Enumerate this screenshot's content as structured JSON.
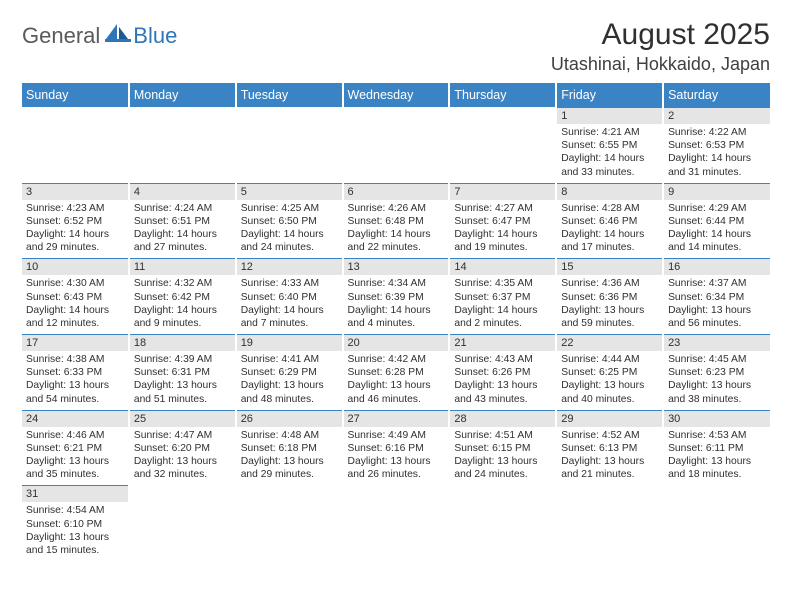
{
  "brand": {
    "text1": "General",
    "text2": "Blue",
    "accent_color": "#2f76b8",
    "muted_color": "#5a5a5a"
  },
  "title": "August 2025",
  "location": "Utashinai, Hokkaido, Japan",
  "colors": {
    "header_bg": "#3a84c5",
    "header_fg": "#ffffff",
    "daynum_bg": "#e5e5e5",
    "cell_border_top": "#3a84c5",
    "text": "#303030"
  },
  "weekdays": [
    "Sunday",
    "Monday",
    "Tuesday",
    "Wednesday",
    "Thursday",
    "Friday",
    "Saturday"
  ],
  "weeks": [
    [
      null,
      null,
      null,
      null,
      null,
      {
        "n": "1",
        "sunrise": "4:21 AM",
        "sunset": "6:55 PM",
        "daylight": "14 hours and 33 minutes."
      },
      {
        "n": "2",
        "sunrise": "4:22 AM",
        "sunset": "6:53 PM",
        "daylight": "14 hours and 31 minutes."
      }
    ],
    [
      {
        "n": "3",
        "sunrise": "4:23 AM",
        "sunset": "6:52 PM",
        "daylight": "14 hours and 29 minutes."
      },
      {
        "n": "4",
        "sunrise": "4:24 AM",
        "sunset": "6:51 PM",
        "daylight": "14 hours and 27 minutes."
      },
      {
        "n": "5",
        "sunrise": "4:25 AM",
        "sunset": "6:50 PM",
        "daylight": "14 hours and 24 minutes."
      },
      {
        "n": "6",
        "sunrise": "4:26 AM",
        "sunset": "6:48 PM",
        "daylight": "14 hours and 22 minutes."
      },
      {
        "n": "7",
        "sunrise": "4:27 AM",
        "sunset": "6:47 PM",
        "daylight": "14 hours and 19 minutes."
      },
      {
        "n": "8",
        "sunrise": "4:28 AM",
        "sunset": "6:46 PM",
        "daylight": "14 hours and 17 minutes."
      },
      {
        "n": "9",
        "sunrise": "4:29 AM",
        "sunset": "6:44 PM",
        "daylight": "14 hours and 14 minutes."
      }
    ],
    [
      {
        "n": "10",
        "sunrise": "4:30 AM",
        "sunset": "6:43 PM",
        "daylight": "14 hours and 12 minutes."
      },
      {
        "n": "11",
        "sunrise": "4:32 AM",
        "sunset": "6:42 PM",
        "daylight": "14 hours and 9 minutes."
      },
      {
        "n": "12",
        "sunrise": "4:33 AM",
        "sunset": "6:40 PM",
        "daylight": "14 hours and 7 minutes."
      },
      {
        "n": "13",
        "sunrise": "4:34 AM",
        "sunset": "6:39 PM",
        "daylight": "14 hours and 4 minutes."
      },
      {
        "n": "14",
        "sunrise": "4:35 AM",
        "sunset": "6:37 PM",
        "daylight": "14 hours and 2 minutes."
      },
      {
        "n": "15",
        "sunrise": "4:36 AM",
        "sunset": "6:36 PM",
        "daylight": "13 hours and 59 minutes."
      },
      {
        "n": "16",
        "sunrise": "4:37 AM",
        "sunset": "6:34 PM",
        "daylight": "13 hours and 56 minutes."
      }
    ],
    [
      {
        "n": "17",
        "sunrise": "4:38 AM",
        "sunset": "6:33 PM",
        "daylight": "13 hours and 54 minutes."
      },
      {
        "n": "18",
        "sunrise": "4:39 AM",
        "sunset": "6:31 PM",
        "daylight": "13 hours and 51 minutes."
      },
      {
        "n": "19",
        "sunrise": "4:41 AM",
        "sunset": "6:29 PM",
        "daylight": "13 hours and 48 minutes."
      },
      {
        "n": "20",
        "sunrise": "4:42 AM",
        "sunset": "6:28 PM",
        "daylight": "13 hours and 46 minutes."
      },
      {
        "n": "21",
        "sunrise": "4:43 AM",
        "sunset": "6:26 PM",
        "daylight": "13 hours and 43 minutes."
      },
      {
        "n": "22",
        "sunrise": "4:44 AM",
        "sunset": "6:25 PM",
        "daylight": "13 hours and 40 minutes."
      },
      {
        "n": "23",
        "sunrise": "4:45 AM",
        "sunset": "6:23 PM",
        "daylight": "13 hours and 38 minutes."
      }
    ],
    [
      {
        "n": "24",
        "sunrise": "4:46 AM",
        "sunset": "6:21 PM",
        "daylight": "13 hours and 35 minutes."
      },
      {
        "n": "25",
        "sunrise": "4:47 AM",
        "sunset": "6:20 PM",
        "daylight": "13 hours and 32 minutes."
      },
      {
        "n": "26",
        "sunrise": "4:48 AM",
        "sunset": "6:18 PM",
        "daylight": "13 hours and 29 minutes."
      },
      {
        "n": "27",
        "sunrise": "4:49 AM",
        "sunset": "6:16 PM",
        "daylight": "13 hours and 26 minutes."
      },
      {
        "n": "28",
        "sunrise": "4:51 AM",
        "sunset": "6:15 PM",
        "daylight": "13 hours and 24 minutes."
      },
      {
        "n": "29",
        "sunrise": "4:52 AM",
        "sunset": "6:13 PM",
        "daylight": "13 hours and 21 minutes."
      },
      {
        "n": "30",
        "sunrise": "4:53 AM",
        "sunset": "6:11 PM",
        "daylight": "13 hours and 18 minutes."
      }
    ],
    [
      {
        "n": "31",
        "sunrise": "4:54 AM",
        "sunset": "6:10 PM",
        "daylight": "13 hours and 15 minutes."
      },
      null,
      null,
      null,
      null,
      null,
      null
    ]
  ],
  "labels": {
    "sunrise": "Sunrise: ",
    "sunset": "Sunset: ",
    "daylight": "Daylight: "
  }
}
